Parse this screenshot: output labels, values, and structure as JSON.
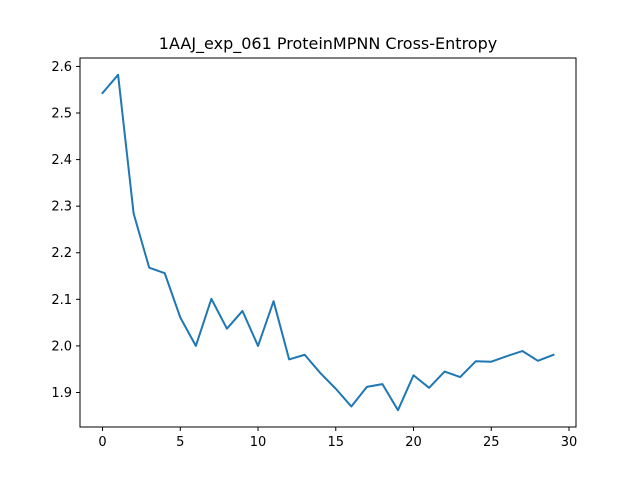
{
  "chart_data": {
    "type": "line",
    "title": "1AAJ_exp_061 ProteinMPNN Cross-Entropy",
    "xlabel": "",
    "ylabel": "",
    "xlim": [
      -1.45,
      30.45
    ],
    "ylim": [
      1.8259,
      2.6181
    ],
    "xticks": [
      0,
      5,
      10,
      15,
      20,
      25,
      30
    ],
    "yticks": [
      1.9,
      2.0,
      2.1,
      2.2,
      2.3,
      2.4,
      2.5,
      2.6
    ],
    "xtick_labels": [
      "0",
      "5",
      "10",
      "15",
      "20",
      "25",
      "30"
    ],
    "ytick_labels": [
      "1.9",
      "2.0",
      "2.1",
      "2.2",
      "2.3",
      "2.4",
      "2.5",
      "2.6"
    ],
    "grid": false,
    "line_color": "#1f77b4",
    "series": [
      {
        "x": [
          0,
          1,
          2,
          3,
          4,
          5,
          6,
          7,
          8,
          9,
          10,
          11,
          12,
          13,
          14,
          15,
          16,
          17,
          18,
          19,
          20,
          21,
          22,
          23,
          24,
          25,
          26,
          27,
          28,
          29
        ],
        "values": [
          2.543,
          2.582,
          2.284,
          2.168,
          2.156,
          2.061,
          2.0,
          2.101,
          2.037,
          2.075,
          2.0,
          2.096,
          1.971,
          1.981,
          1.942,
          1.908,
          1.87,
          1.912,
          1.918,
          1.862,
          1.937,
          1.91,
          1.945,
          1.933,
          1.967,
          1.966,
          1.978,
          1.989,
          1.968,
          1.981
        ]
      }
    ]
  }
}
